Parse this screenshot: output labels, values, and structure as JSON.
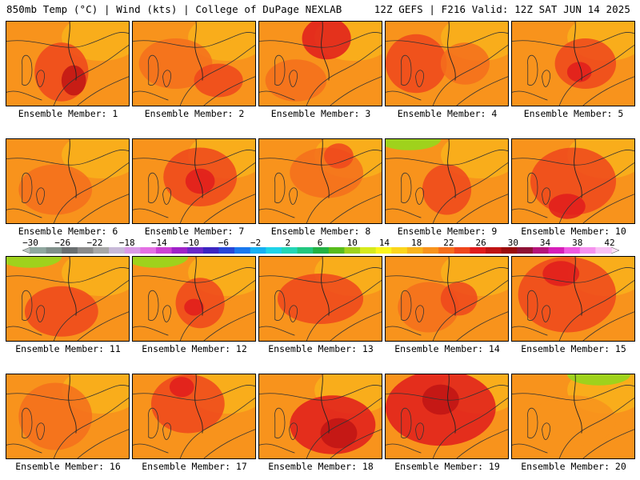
{
  "header": {
    "left": "850mb Temp (°C) | Wind (kts) | College of DuPage NEXLAB",
    "right": "12Z GEFS | F216 Valid: 12Z SAT JUN 14 2025"
  },
  "colorbar": {
    "ticks": [
      "−30",
      "−26",
      "−22",
      "−18",
      "−14",
      "−10",
      "−6",
      "−2",
      "2",
      "6",
      "10",
      "14",
      "18",
      "22",
      "26",
      "30",
      "34",
      "38",
      "42"
    ],
    "colors": [
      "#8fa79f",
      "#7f8f8a",
      "#6a6f70",
      "#8a8a8a",
      "#a7a7a7",
      "#c8b9d8",
      "#d99ae6",
      "#e36fe3",
      "#cc41d4",
      "#9f22c8",
      "#6a28c7",
      "#3c25c1",
      "#2747d8",
      "#1a78ee",
      "#16b0f2",
      "#1fd3e8",
      "#23d6b6",
      "#22c77f",
      "#22b243",
      "#58bc1c",
      "#9fd21c",
      "#d6ea1c",
      "#fbf51c",
      "#fbd51c",
      "#f9b41c",
      "#f8931c",
      "#f56e1c",
      "#ef461c",
      "#e01c1c",
      "#bf1414",
      "#9a0c0c",
      "#8e1236",
      "#b5147a",
      "#d61eb8",
      "#ef59e0",
      "#f592ee",
      "#f8c1f4"
    ]
  },
  "members": [
    {
      "label": "Ensemble Member: 1"
    },
    {
      "label": "Ensemble Member: 2"
    },
    {
      "label": "Ensemble Member: 3"
    },
    {
      "label": "Ensemble Member: 4"
    },
    {
      "label": "Ensemble Member: 5"
    },
    {
      "label": "Ensemble Member: 6"
    },
    {
      "label": "Ensemble Member: 7"
    },
    {
      "label": "Ensemble Member: 8"
    },
    {
      "label": "Ensemble Member: 9"
    },
    {
      "label": "Ensemble Member: 10"
    },
    {
      "label": "Ensemble Member: 11"
    },
    {
      "label": "Ensemble Member: 12"
    },
    {
      "label": "Ensemble Member: 13"
    },
    {
      "label": "Ensemble Member: 14"
    },
    {
      "label": "Ensemble Member: 15"
    },
    {
      "label": "Ensemble Member: 16"
    },
    {
      "label": "Ensemble Member: 17"
    },
    {
      "label": "Ensemble Member: 18"
    },
    {
      "label": "Ensemble Member: 19"
    },
    {
      "label": "Ensemble Member: 20"
    }
  ]
}
